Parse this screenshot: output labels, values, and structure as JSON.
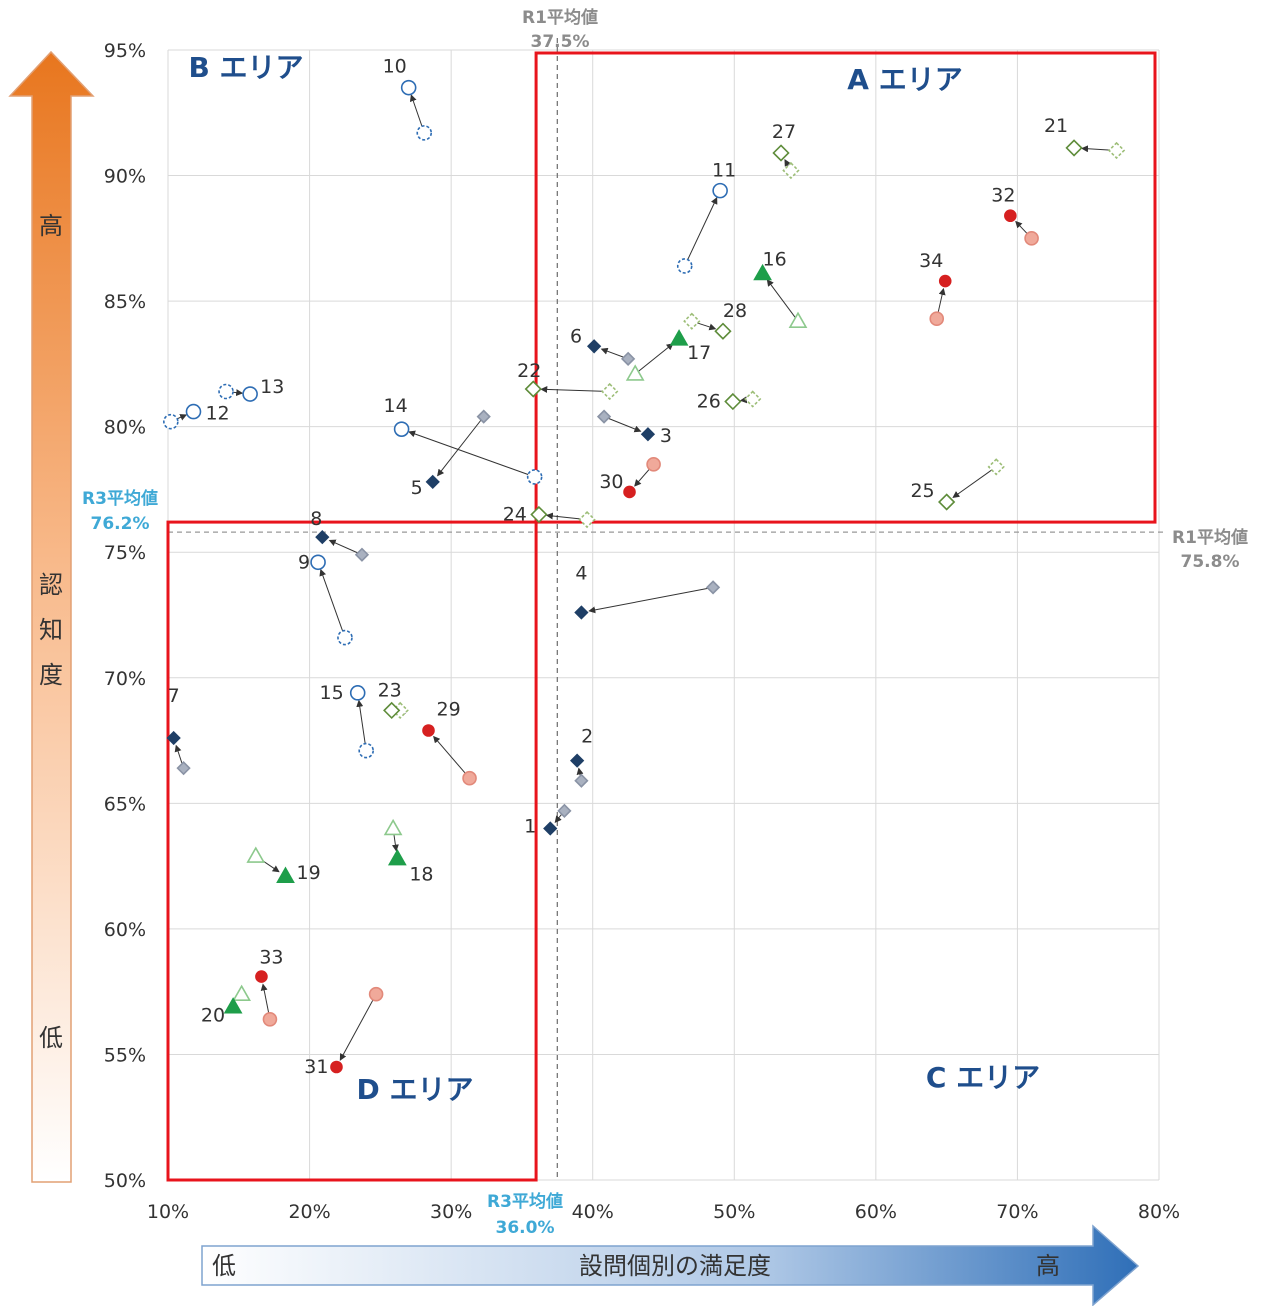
{
  "chart_data": {
    "type": "scatter",
    "xlim": [
      10,
      80
    ],
    "ylim": [
      50,
      95
    ],
    "x_ticks": [
      "10%",
      "20%",
      "30%",
      "40%",
      "50%",
      "60%",
      "70%",
      "80%"
    ],
    "y_ticks": [
      "50%",
      "55%",
      "60%",
      "65%",
      "70%",
      "75%",
      "80%",
      "85%",
      "90%",
      "95%"
    ],
    "grid": true,
    "xlabel": "設問個別の満足度",
    "x_low": "低",
    "x_high": "高",
    "ylabel": "認知度",
    "y_low": "低",
    "y_high": "高",
    "averages": {
      "r1_x": {
        "label": "R1平均値",
        "value_text": "37.5%",
        "value": 37.5
      },
      "r1_y": {
        "label": "R1平均値",
        "value_text": "75.8%",
        "value": 75.8
      },
      "r3_x": {
        "label": "R3平均値",
        "value_text": "36.0%",
        "value": 36.0
      },
      "r3_y": {
        "label": "R3平均値",
        "value_text": "76.2%",
        "value": 76.2
      }
    },
    "areas": [
      {
        "label": "A エリア"
      },
      {
        "label": "B エリア"
      },
      {
        "label": "C エリア"
      },
      {
        "label": "D エリア"
      }
    ],
    "colors": {
      "navy": "#1F3F66",
      "light_gray": "#A9B1C0",
      "blue": "#2E6DB4",
      "green": "#1E9E4A",
      "light_green": "#8DC98D",
      "olive": "#5E8C3A",
      "red": "#D62020",
      "pink": "#F0A99A",
      "area_red": "#E8141C",
      "area_text": "#1F4E8C"
    },
    "points": [
      {
        "id": "1",
        "shape": "diamond",
        "scheme": "navy",
        "r1": [
          38.0,
          64.7
        ],
        "r3": [
          37.0,
          64.0
        ]
      },
      {
        "id": "2",
        "shape": "diamond",
        "scheme": "navy",
        "r1": [
          39.2,
          65.9
        ],
        "r3": [
          38.9,
          66.7
        ]
      },
      {
        "id": "3",
        "shape": "diamond",
        "scheme": "navy",
        "r1": [
          40.8,
          80.4
        ],
        "r3": [
          43.9,
          79.7
        ]
      },
      {
        "id": "4",
        "shape": "diamond",
        "scheme": "navy",
        "r1": [
          48.5,
          73.6
        ],
        "r3": [
          39.2,
          72.6
        ]
      },
      {
        "id": "5",
        "shape": "diamond",
        "scheme": "navy",
        "r1": [
          32.3,
          80.4
        ],
        "r3": [
          28.7,
          77.8
        ]
      },
      {
        "id": "6",
        "shape": "diamond",
        "scheme": "navy",
        "r1": [
          42.5,
          82.7
        ],
        "r3": [
          40.1,
          83.2
        ]
      },
      {
        "id": "7",
        "shape": "diamond",
        "scheme": "navy",
        "r1": [
          11.1,
          66.4
        ],
        "r3": [
          10.4,
          67.6
        ]
      },
      {
        "id": "8",
        "shape": "diamond",
        "scheme": "navy",
        "r1": [
          23.7,
          74.9
        ],
        "r3": [
          20.9,
          75.6
        ]
      },
      {
        "id": "9",
        "shape": "circle",
        "scheme": "blue",
        "r1": [
          22.5,
          71.6
        ],
        "r3": [
          20.6,
          74.6
        ]
      },
      {
        "id": "10",
        "shape": "circle",
        "scheme": "blue",
        "r1": [
          28.1,
          91.7
        ],
        "r3": [
          27.0,
          93.5
        ]
      },
      {
        "id": "11",
        "shape": "circle",
        "scheme": "blue",
        "r1": [
          46.5,
          86.4
        ],
        "r3": [
          49.0,
          89.4
        ]
      },
      {
        "id": "12",
        "shape": "circle",
        "scheme": "blue",
        "r1": [
          10.2,
          80.2
        ],
        "r3": [
          11.8,
          80.6
        ]
      },
      {
        "id": "13",
        "shape": "circle",
        "scheme": "blue",
        "r1": [
          14.1,
          81.4
        ],
        "r3": [
          15.8,
          81.3
        ]
      },
      {
        "id": "14",
        "shape": "circle",
        "scheme": "blue",
        "r1": [
          35.9,
          78.0
        ],
        "r3": [
          26.5,
          79.9
        ]
      },
      {
        "id": "15",
        "shape": "circle",
        "scheme": "blue",
        "r1": [
          24.0,
          67.1
        ],
        "r3": [
          23.4,
          69.4
        ]
      },
      {
        "id": "16",
        "shape": "triangle",
        "scheme": "green",
        "r1": [
          54.5,
          84.2
        ],
        "r3": [
          52.0,
          86.1
        ]
      },
      {
        "id": "17",
        "shape": "triangle",
        "scheme": "green",
        "r1": [
          43.0,
          82.1
        ],
        "r3": [
          46.1,
          83.5
        ]
      },
      {
        "id": "18",
        "shape": "triangle",
        "scheme": "green",
        "r1": [
          25.9,
          64.0
        ],
        "r3": [
          26.2,
          62.8
        ]
      },
      {
        "id": "19",
        "shape": "triangle",
        "scheme": "green",
        "r1": [
          16.2,
          62.9
        ],
        "r3": [
          18.3,
          62.1
        ]
      },
      {
        "id": "20",
        "shape": "triangle",
        "scheme": "green",
        "r1": [
          15.2,
          57.4
        ],
        "r3": [
          14.6,
          56.9
        ]
      },
      {
        "id": "21",
        "shape": "diamond-open",
        "scheme": "olive",
        "r1": [
          77.0,
          91.0
        ],
        "r3": [
          74.0,
          91.1
        ]
      },
      {
        "id": "22",
        "shape": "diamond-open",
        "scheme": "olive",
        "r1": [
          41.2,
          81.4
        ],
        "r3": [
          35.8,
          81.5
        ]
      },
      {
        "id": "23",
        "shape": "diamond-open",
        "scheme": "olive",
        "r1": [
          26.4,
          68.7
        ],
        "r3": [
          25.8,
          68.7
        ]
      },
      {
        "id": "24",
        "shape": "diamond-open",
        "scheme": "olive",
        "r1": [
          39.6,
          76.3
        ],
        "r3": [
          36.2,
          76.5
        ]
      },
      {
        "id": "25",
        "shape": "diamond-open",
        "scheme": "olive",
        "r1": [
          68.5,
          78.4
        ],
        "r3": [
          65.0,
          77.0
        ]
      },
      {
        "id": "26",
        "shape": "diamond-open",
        "scheme": "olive",
        "r1": [
          51.3,
          81.1
        ],
        "r3": [
          49.9,
          81.0
        ]
      },
      {
        "id": "27",
        "shape": "diamond-open",
        "scheme": "olive",
        "r1": [
          54.0,
          90.2
        ],
        "r3": [
          53.3,
          90.9
        ]
      },
      {
        "id": "28",
        "shape": "diamond-open",
        "scheme": "olive",
        "r1": [
          47.0,
          84.2
        ],
        "r3": [
          49.2,
          83.8
        ]
      },
      {
        "id": "29",
        "shape": "dot",
        "scheme": "red",
        "r1": [
          31.3,
          66.0
        ],
        "r3": [
          28.4,
          67.9
        ]
      },
      {
        "id": "30",
        "shape": "dot",
        "scheme": "red",
        "r1": [
          44.3,
          78.5
        ],
        "r3": [
          42.6,
          77.4
        ]
      },
      {
        "id": "31",
        "shape": "dot",
        "scheme": "red",
        "r1": [
          24.7,
          57.4
        ],
        "r3": [
          21.9,
          54.5
        ]
      },
      {
        "id": "32",
        "shape": "dot",
        "scheme": "red",
        "r1": [
          71.0,
          87.5
        ],
        "r3": [
          69.5,
          88.4
        ]
      },
      {
        "id": "33",
        "shape": "dot",
        "scheme": "red",
        "r1": [
          17.2,
          56.4
        ],
        "r3": [
          16.6,
          58.1
        ]
      },
      {
        "id": "34",
        "shape": "dot",
        "scheme": "red",
        "r1": [
          64.3,
          84.3
        ],
        "r3": [
          64.9,
          85.8
        ]
      }
    ]
  }
}
